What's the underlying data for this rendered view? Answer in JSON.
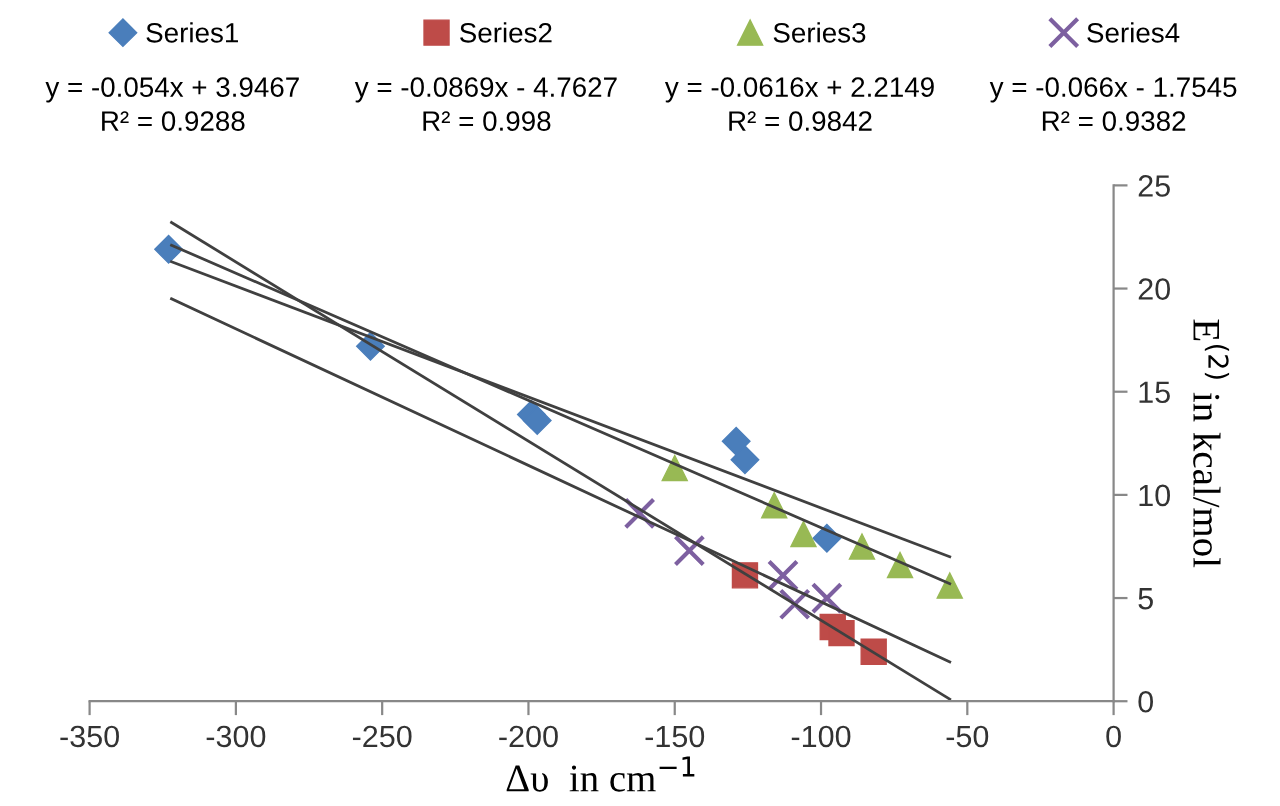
{
  "chart_data": {
    "type": "scatter",
    "xlabel": "Δυ  in cm$^{−1}$",
    "ylabel": "E$^{(2)}$ in kcal/mol",
    "xlim": [
      -350,
      0
    ],
    "xticks": [
      -350,
      -300,
      -250,
      -200,
      -150,
      -100,
      -50,
      0
    ],
    "ylim": [
      0,
      25
    ],
    "yticks": [
      0,
      5,
      10,
      15,
      20,
      25
    ],
    "grid": false,
    "legend": "top",
    "annotations": [
      "y = -0.054x + 3.9467\nR² = 0.9288",
      "y = -0.0869x - 4.7627\nR² = 0.998",
      "y = -0.0616x + 2.2149\nR² = 0.9842",
      "y = -0.066x - 1.7545\nR² = 0.9382"
    ],
    "series": [
      {
        "name": "Series1",
        "color": "#4a7ebb",
        "marker": "diamond",
        "x": [
          -323,
          -254,
          -199,
          -197,
          -129,
          -126,
          -98
        ],
        "values": [
          21.9,
          17.2,
          13.9,
          13.6,
          12.6,
          11.7,
          7.9
        ]
      },
      {
        "name": "Series2",
        "color": "#be4b48",
        "marker": "square",
        "x": [
          -126,
          -96,
          -93,
          -82
        ],
        "values": [
          6.1,
          3.6,
          3.3,
          2.4
        ]
      },
      {
        "name": "Series3",
        "color": "#98b954",
        "marker": "triangle",
        "x": [
          -150,
          -116,
          -106,
          -86,
          -73,
          -56
        ],
        "values": [
          11.3,
          9.5,
          8.1,
          7.5,
          6.6,
          5.6
        ]
      },
      {
        "name": "Series4",
        "color": "#7d60a0",
        "marker": "cross",
        "x": [
          -162,
          -145,
          -113,
          -109,
          -98
        ],
        "values": [
          9.1,
          7.3,
          6.1,
          4.7,
          5.0
        ]
      },
      {
        "type": "line",
        "color": "#404040",
        "marker": "none",
        "x": [
          -322,
          -56
        ],
        "values": [
          21.3,
          7.0
        ]
      },
      {
        "type": "line",
        "color": "#404040",
        "marker": "none",
        "x": [
          -322,
          -56
        ],
        "values": [
          23.2,
          0.1
        ]
      },
      {
        "type": "line",
        "color": "#404040",
        "marker": "none",
        "x": [
          -322,
          -56
        ],
        "values": [
          22.1,
          5.7
        ]
      },
      {
        "type": "line",
        "color": "#404040",
        "marker": "none",
        "x": [
          -322,
          -56
        ],
        "values": [
          19.5,
          1.9
        ]
      }
    ]
  }
}
